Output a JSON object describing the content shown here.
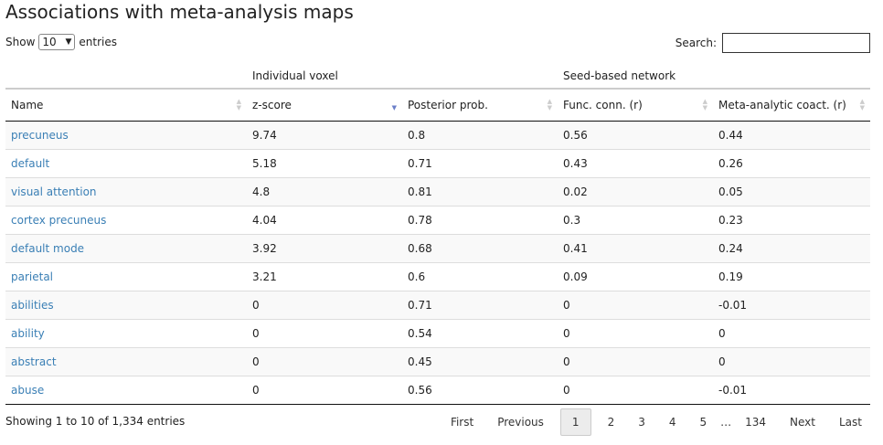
{
  "title": "Associations with meta-analysis maps",
  "length": {
    "prefix": "Show",
    "value": "10",
    "suffix": "entries"
  },
  "search": {
    "label": "Search:",
    "value": ""
  },
  "groups": {
    "individual": "Individual voxel",
    "seed": "Seed-based network"
  },
  "columns": [
    "Name",
    "z-score",
    "Posterior prob.",
    "Func. conn. (r)",
    "Meta-analytic coact. (r)"
  ],
  "rows": [
    [
      "precuneus",
      "9.74",
      "0.8",
      "0.56",
      "0.44"
    ],
    [
      "default",
      "5.18",
      "0.71",
      "0.43",
      "0.26"
    ],
    [
      "visual attention",
      "4.8",
      "0.81",
      "0.02",
      "0.05"
    ],
    [
      "cortex precuneus",
      "4.04",
      "0.78",
      "0.3",
      "0.23"
    ],
    [
      "default mode",
      "3.92",
      "0.68",
      "0.41",
      "0.24"
    ],
    [
      "parietal",
      "3.21",
      "0.6",
      "0.09",
      "0.19"
    ],
    [
      "abilities",
      "0",
      "0.71",
      "0",
      "-0.01"
    ],
    [
      "ability",
      "0",
      "0.54",
      "0",
      "0"
    ],
    [
      "abstract",
      "0",
      "0.45",
      "0",
      "0"
    ],
    [
      "abuse",
      "0",
      "0.56",
      "0",
      "-0.01"
    ]
  ],
  "info": "Showing 1 to 10 of 1,334 entries",
  "pagination": {
    "first": "First",
    "previous": "Previous",
    "pages": [
      "1",
      "2",
      "3",
      "4",
      "5"
    ],
    "ellipsis": "…",
    "last_page": "134",
    "next": "Next",
    "last": "Last"
  },
  "colors": {
    "link": "#3a7fb5",
    "sort_active": "#6b7fc9"
  }
}
